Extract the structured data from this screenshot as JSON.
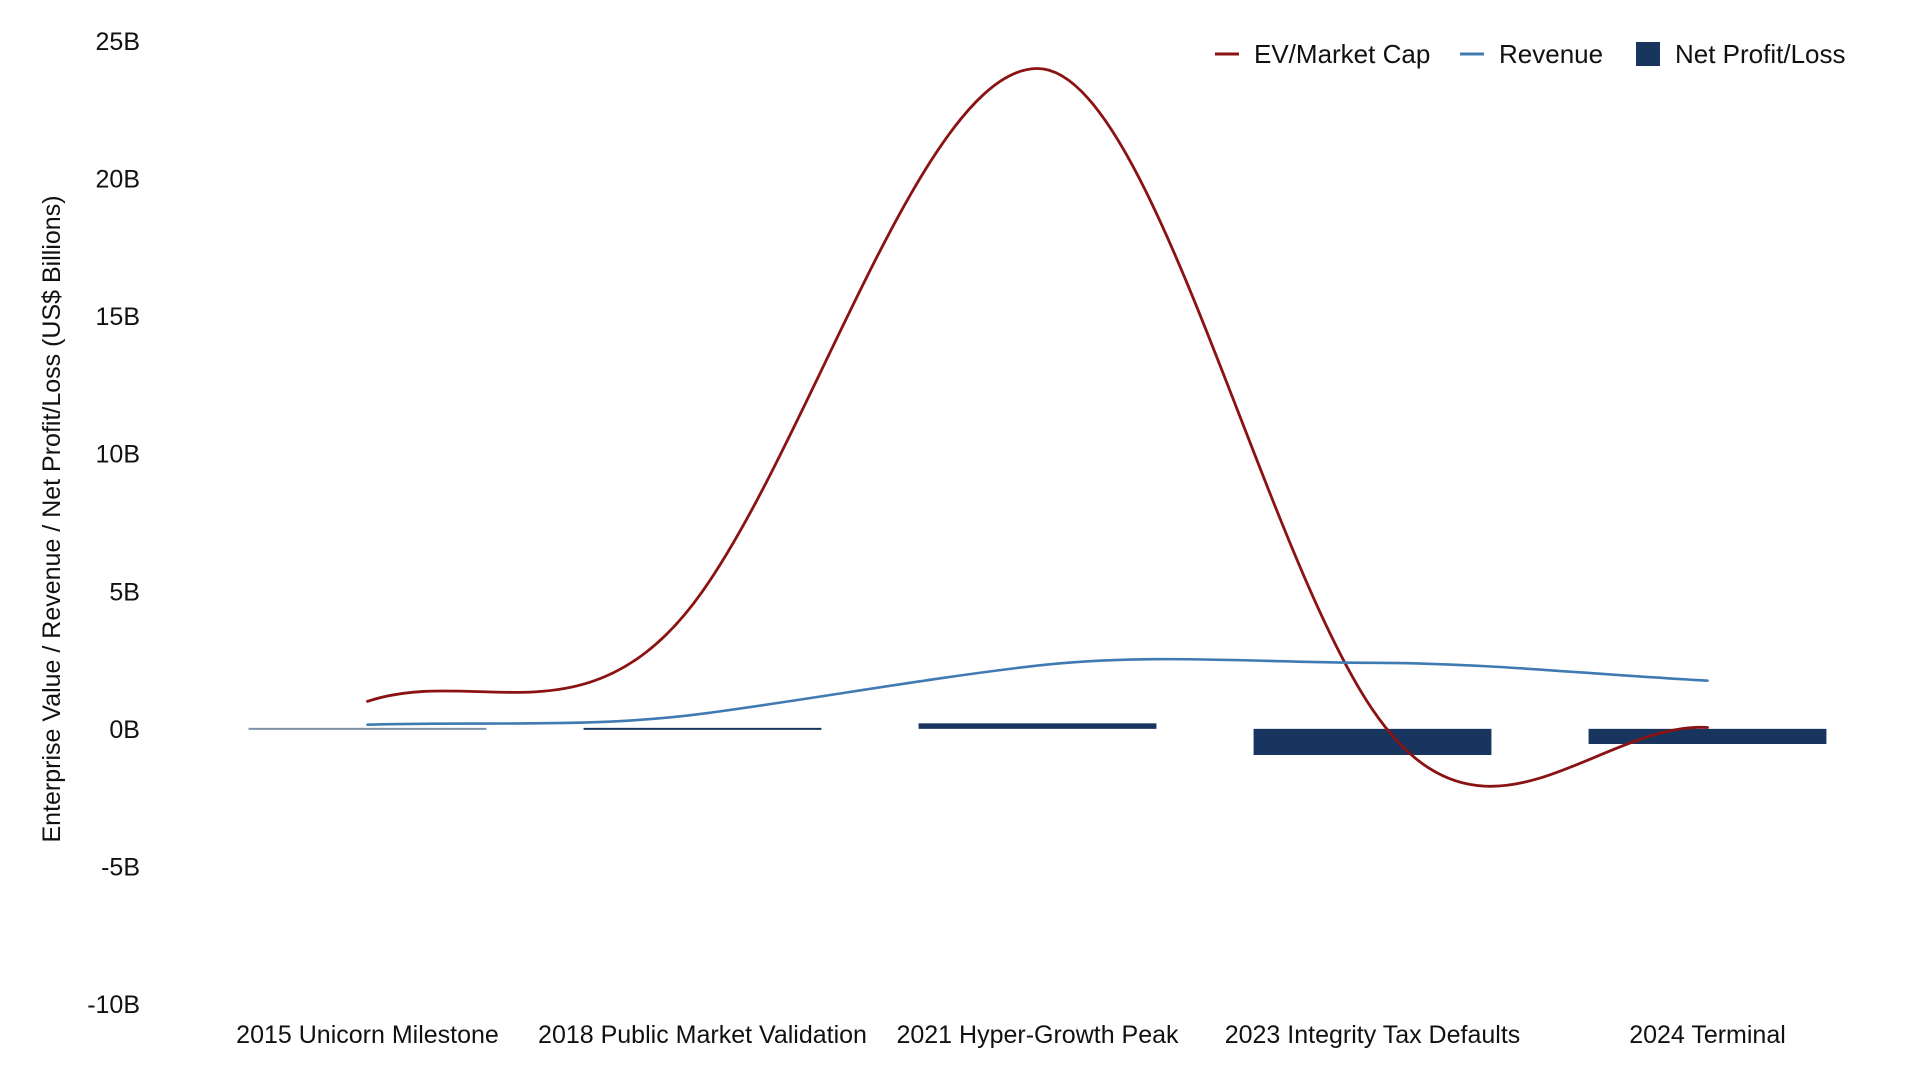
{
  "chart_data": {
    "type": "bar",
    "categories": [
      "2015 Unicorn Milestone",
      "2018 Public Market Validation",
      "2021 Hyper-Growth Peak",
      "2023 Integrity Tax Defaults",
      "2024 Terminal"
    ],
    "ylabel": "Enterprise Value / Revenue / Net Profit/Loss (US$ Billions)",
    "xlabel": "",
    "ylim": [
      -10,
      25
    ],
    "yticks": [
      25,
      20,
      15,
      10,
      5,
      0,
      -5,
      -10
    ],
    "ytick_labels": [
      "25B",
      "20B",
      "15B",
      "10B",
      "5B",
      "0B",
      "-5B",
      "-10B"
    ],
    "grid": false,
    "legend_position": "top-right",
    "series": [
      {
        "name": "EV/Market Cap",
        "kind": "line",
        "color": "#8b1212",
        "values": [
          1.0,
          5.0,
          24.0,
          0.7,
          0.05
        ]
      },
      {
        "name": "Revenue",
        "kind": "line",
        "color": "#3f7ab3",
        "values": [
          0.15,
          0.55,
          2.3,
          2.4,
          1.75
        ]
      },
      {
        "name": "Net Profit/Loss",
        "kind": "bar",
        "color": "#17355f",
        "values": [
          -0.03,
          -0.05,
          0.2,
          -0.95,
          -0.55
        ]
      }
    ]
  }
}
